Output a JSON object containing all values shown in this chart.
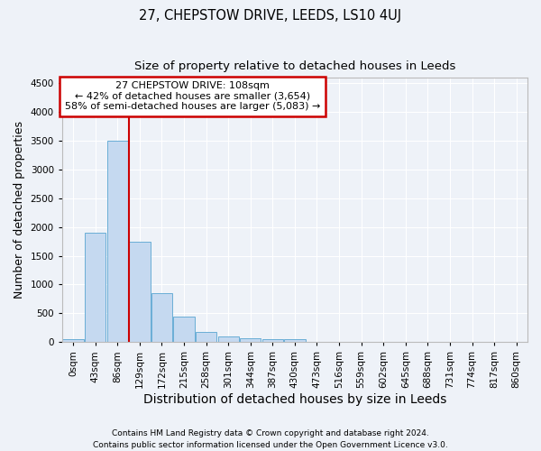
{
  "title_line1": "27, CHEPSTOW DRIVE, LEEDS, LS10 4UJ",
  "title_line2": "Size of property relative to detached houses in Leeds",
  "xlabel": "Distribution of detached houses by size in Leeds",
  "ylabel": "Number of detached properties",
  "bin_labels": [
    "0sqm",
    "43sqm",
    "86sqm",
    "129sqm",
    "172sqm",
    "215sqm",
    "258sqm",
    "301sqm",
    "344sqm",
    "387sqm",
    "430sqm",
    "473sqm",
    "516sqm",
    "559sqm",
    "602sqm",
    "645sqm",
    "688sqm",
    "731sqm",
    "774sqm",
    "817sqm",
    "860sqm"
  ],
  "bar_values": [
    50,
    1900,
    3500,
    1750,
    850,
    450,
    175,
    100,
    60,
    50,
    50,
    0,
    0,
    0,
    0,
    0,
    0,
    0,
    0,
    0,
    0
  ],
  "bar_color": "#c5d9f0",
  "bar_edge_color": "#6aaed6",
  "ylim": [
    0,
    4600
  ],
  "yticks": [
    0,
    500,
    1000,
    1500,
    2000,
    2500,
    3000,
    3500,
    4000,
    4500
  ],
  "property_size_bin": 2.51,
  "annotation_line1": "27 CHEPSTOW DRIVE: 108sqm",
  "annotation_line2": "← 42% of detached houses are smaller (3,654)",
  "annotation_line3": "58% of semi-detached houses are larger (5,083) →",
  "annotation_box_color": "#ffffff",
  "annotation_box_edge": "#cc0000",
  "vline_color": "#cc0000",
  "footnote_line1": "Contains HM Land Registry data © Crown copyright and database right 2024.",
  "footnote_line2": "Contains public sector information licensed under the Open Government Licence v3.0.",
  "bg_color": "#eef2f8",
  "grid_color": "#ffffff",
  "title_fontsize": 10.5,
  "subtitle_fontsize": 9.5,
  "axis_label_fontsize": 9,
  "tick_fontsize": 7.5,
  "footnote_fontsize": 6.5
}
